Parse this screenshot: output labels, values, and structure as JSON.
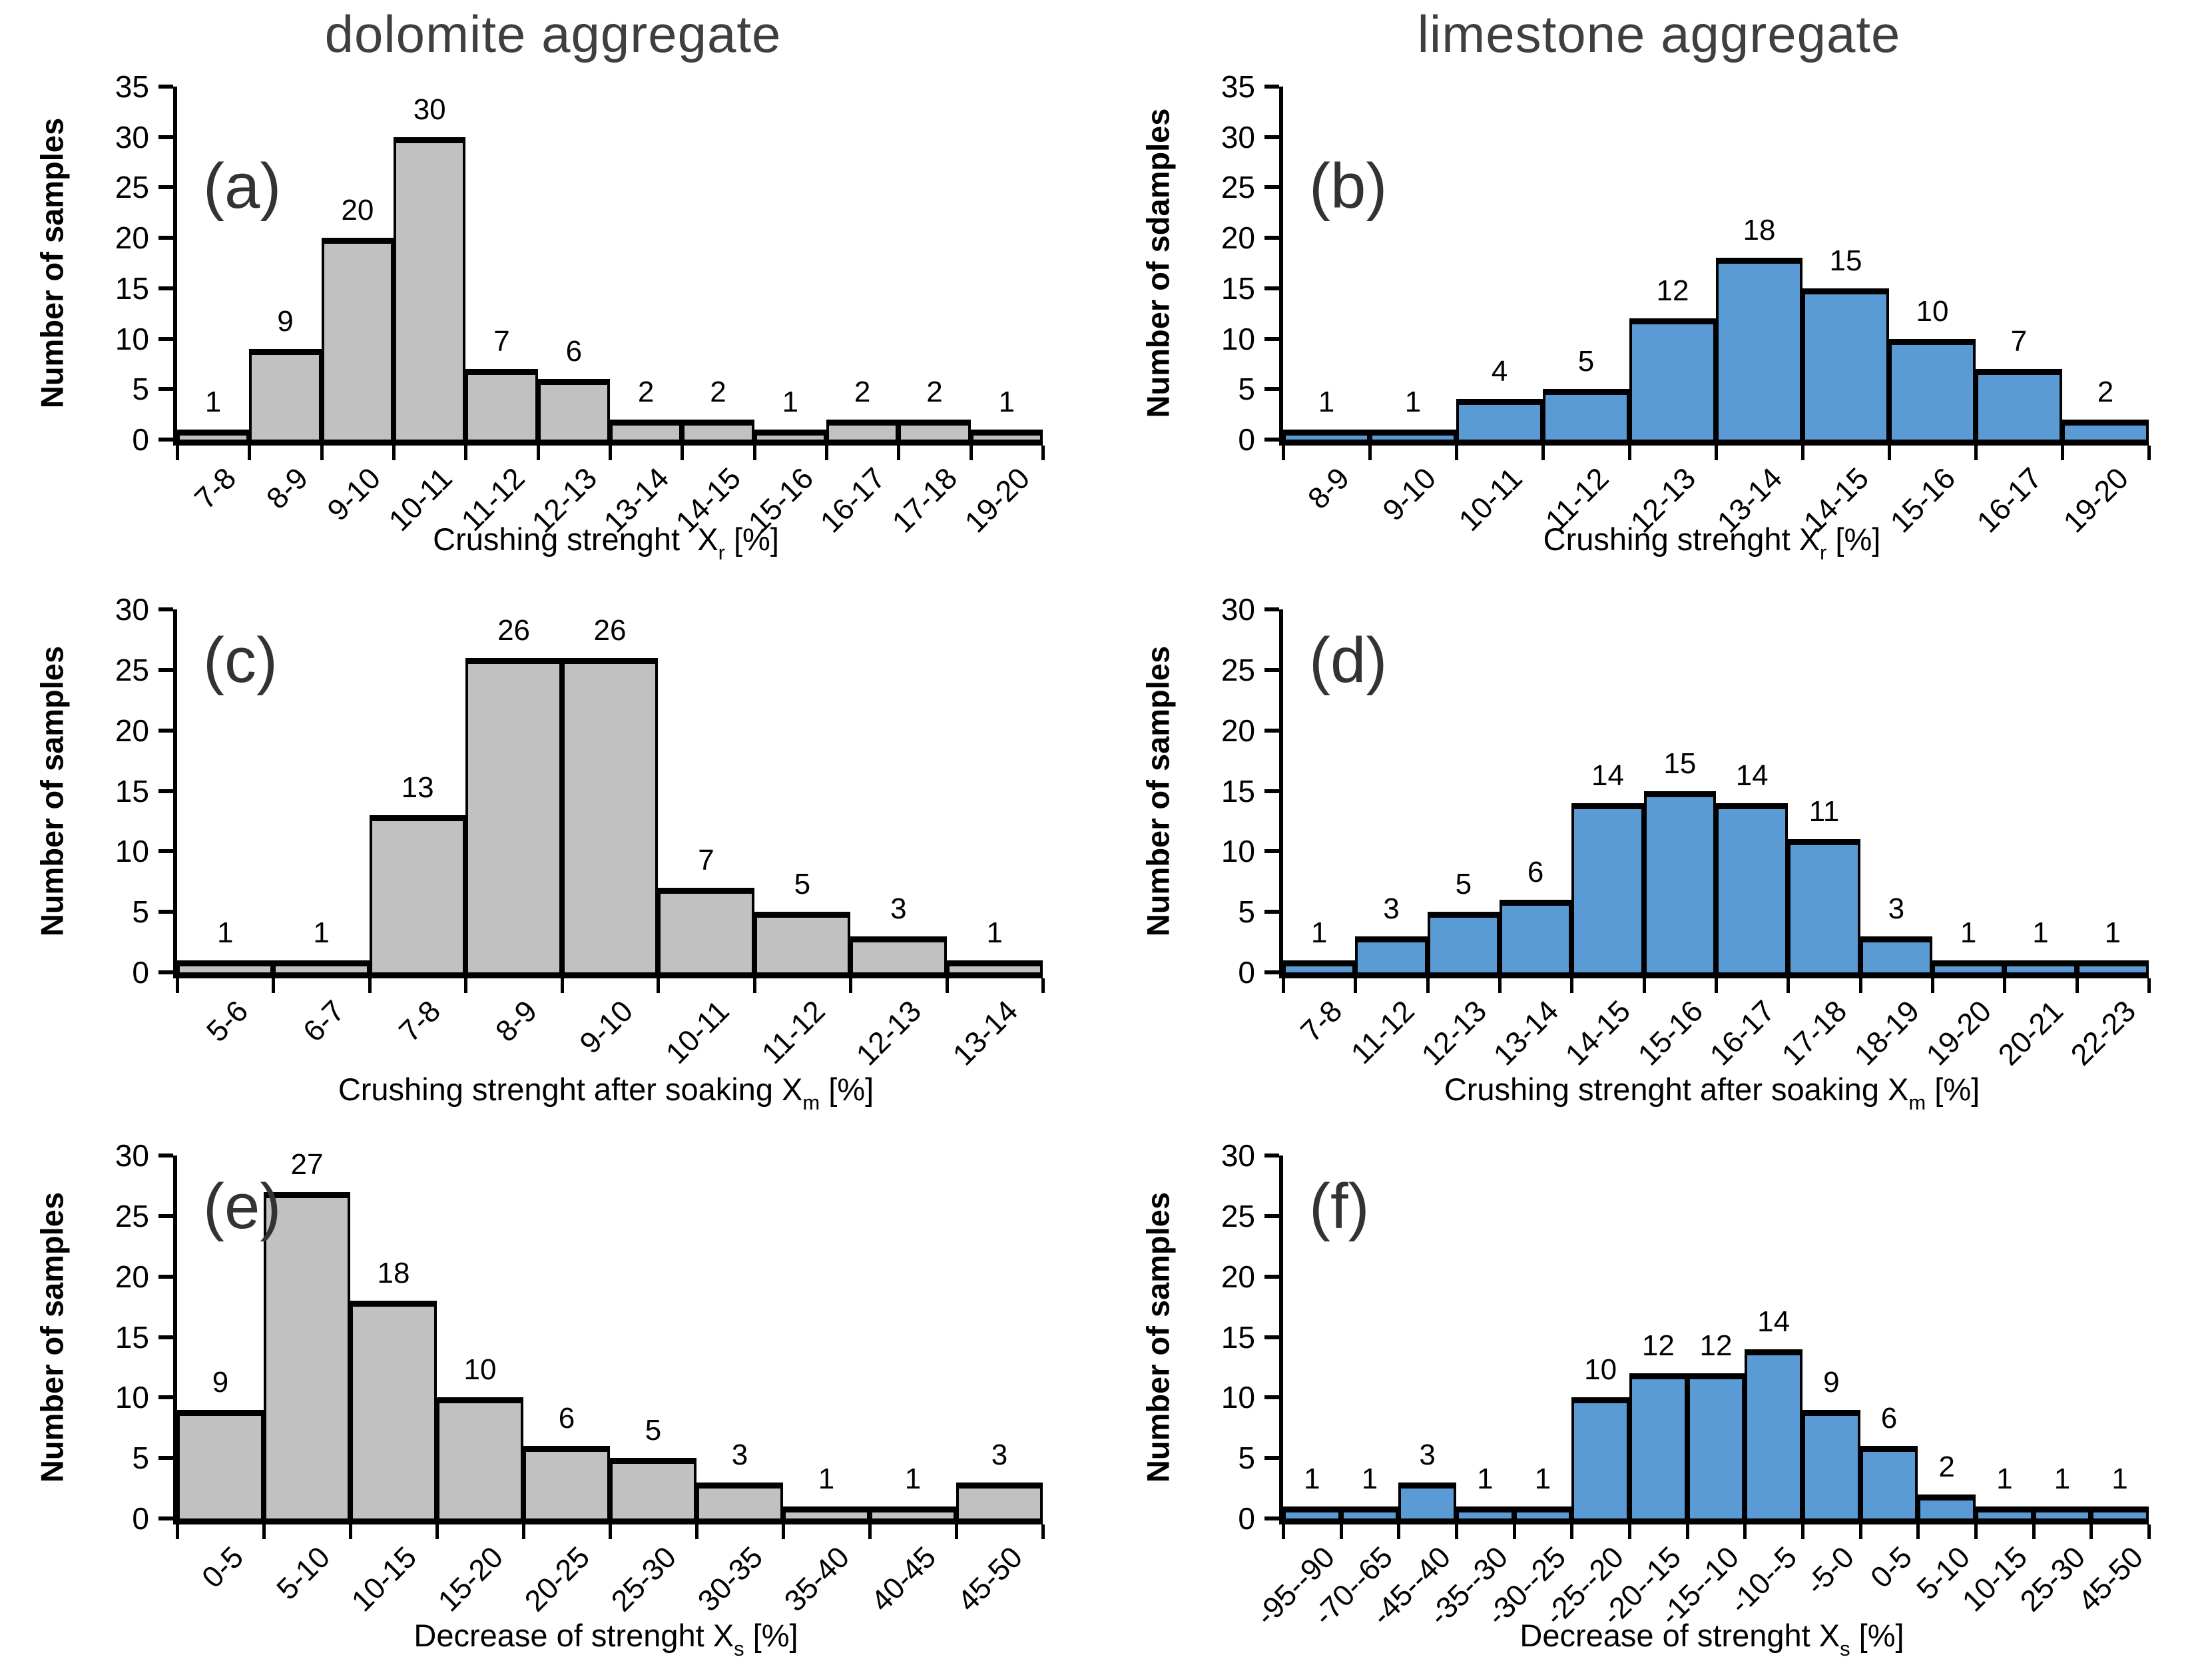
{
  "figure": {
    "background": "#ffffff",
    "columns": [
      {
        "title": "dolomite aggregate"
      },
      {
        "title": "limestone aggregate"
      }
    ]
  },
  "colors": {
    "dolomite_bar": "#C1C1C1",
    "limestone_bar": "#5B9BD5",
    "bar_border": "#000000",
    "axis": "#000000",
    "title_text": "#3f3f3f"
  },
  "chart_data": [
    {
      "id": "a",
      "type": "bar",
      "panel_label": "(a)",
      "column_title": "dolomite aggregate",
      "show_column_title": true,
      "ylabel": "Number of samples",
      "xlabel_prefix": "Crushing strenght  X",
      "xlabel_sub": "r",
      "xlabel_suffix": " [%]",
      "ylim": [
        0,
        35
      ],
      "ystep": 5,
      "grid": false,
      "categories": [
        "7-8",
        "8-9",
        "9-10",
        "10-11",
        "11-12",
        "12-13",
        "13-14",
        "14-15",
        "15-16",
        "16-17",
        "17-18",
        "19-20"
      ],
      "values": [
        1,
        9,
        20,
        30,
        7,
        6,
        2,
        2,
        1,
        2,
        2,
        1
      ],
      "bar_color": "#C1C1C1"
    },
    {
      "id": "b",
      "type": "bar",
      "panel_label": "(b)",
      "column_title": "limestone aggregate",
      "show_column_title": true,
      "ylabel": "Number of sdamples",
      "xlabel_prefix": "Crushing strenght X",
      "xlabel_sub": "r",
      "xlabel_suffix": " [%]",
      "ylim": [
        0,
        35
      ],
      "ystep": 5,
      "grid": false,
      "categories": [
        "8-9",
        "9-10",
        "10-11",
        "11-12",
        "12-13",
        "13-14",
        "14-15",
        "15-16",
        "16-17",
        "19-20"
      ],
      "values": [
        1,
        1,
        4,
        5,
        12,
        18,
        15,
        10,
        7,
        2
      ],
      "bar_color": "#5B9BD5"
    },
    {
      "id": "c",
      "type": "bar",
      "panel_label": "(c)",
      "column_title": "",
      "show_column_title": false,
      "ylabel": "Number of samples",
      "xlabel_prefix": "Crushing strenght after soaking X",
      "xlabel_sub": "m",
      "xlabel_suffix": " [%]",
      "ylim": [
        0,
        30
      ],
      "ystep": 5,
      "grid": false,
      "categories": [
        "5-6",
        "6-7",
        "7-8",
        "8-9",
        "9-10",
        "10-11",
        "11-12",
        "12-13",
        "13-14"
      ],
      "values": [
        1,
        1,
        13,
        26,
        26,
        7,
        5,
        3,
        1
      ],
      "bar_color": "#C1C1C1"
    },
    {
      "id": "d",
      "type": "bar",
      "panel_label": "(d)",
      "column_title": "",
      "show_column_title": false,
      "ylabel": "Number of samples",
      "xlabel_prefix": "Crushing strenght after soaking X",
      "xlabel_sub": "m",
      "xlabel_suffix": " [%]",
      "ylim": [
        0,
        30
      ],
      "ystep": 5,
      "grid": false,
      "categories": [
        "7-8",
        "11-12",
        "12-13",
        "13-14",
        "14-15",
        "15-16",
        "16-17",
        "17-18",
        "18-19",
        "19-20",
        "20-21",
        "22-23"
      ],
      "values": [
        1,
        3,
        5,
        6,
        14,
        15,
        14,
        11,
        3,
        1,
        1,
        1
      ],
      "bar_color": "#5B9BD5"
    },
    {
      "id": "e",
      "type": "bar",
      "panel_label": "(e)",
      "column_title": "",
      "show_column_title": false,
      "ylabel": "Number of samples",
      "xlabel_prefix": "Decrease of strenght X",
      "xlabel_sub": "s",
      "xlabel_suffix": " [%]",
      "ylim": [
        0,
        30
      ],
      "ystep": 5,
      "grid": false,
      "categories": [
        "0-5",
        "5-10",
        "10-15",
        "15-20",
        "20-25",
        "25-30",
        "30-35",
        "35-40",
        "40-45",
        "45-50"
      ],
      "values": [
        9,
        27,
        18,
        10,
        6,
        5,
        3,
        1,
        1,
        3
      ],
      "bar_color": "#C1C1C1"
    },
    {
      "id": "f",
      "type": "bar",
      "panel_label": "(f)",
      "column_title": "",
      "show_column_title": false,
      "ylabel": "Number of samples",
      "xlabel_prefix": "Decrease of strenght X",
      "xlabel_sub": "s",
      "xlabel_suffix": " [%]",
      "ylim": [
        0,
        30
      ],
      "ystep": 5,
      "grid": false,
      "categories": [
        "-95--90",
        "-70--65",
        "-45--40",
        "-35--30",
        "-30--25",
        "-25--20",
        "-20--15",
        "-15--10",
        "-10--5",
        "-5-0",
        "0-5",
        "5-10",
        "10-15",
        "25-30",
        "45-50"
      ],
      "values": [
        1,
        1,
        3,
        1,
        1,
        10,
        12,
        12,
        14,
        9,
        6,
        2,
        1,
        1,
        1
      ],
      "bar_color": "#5B9BD5"
    }
  ]
}
